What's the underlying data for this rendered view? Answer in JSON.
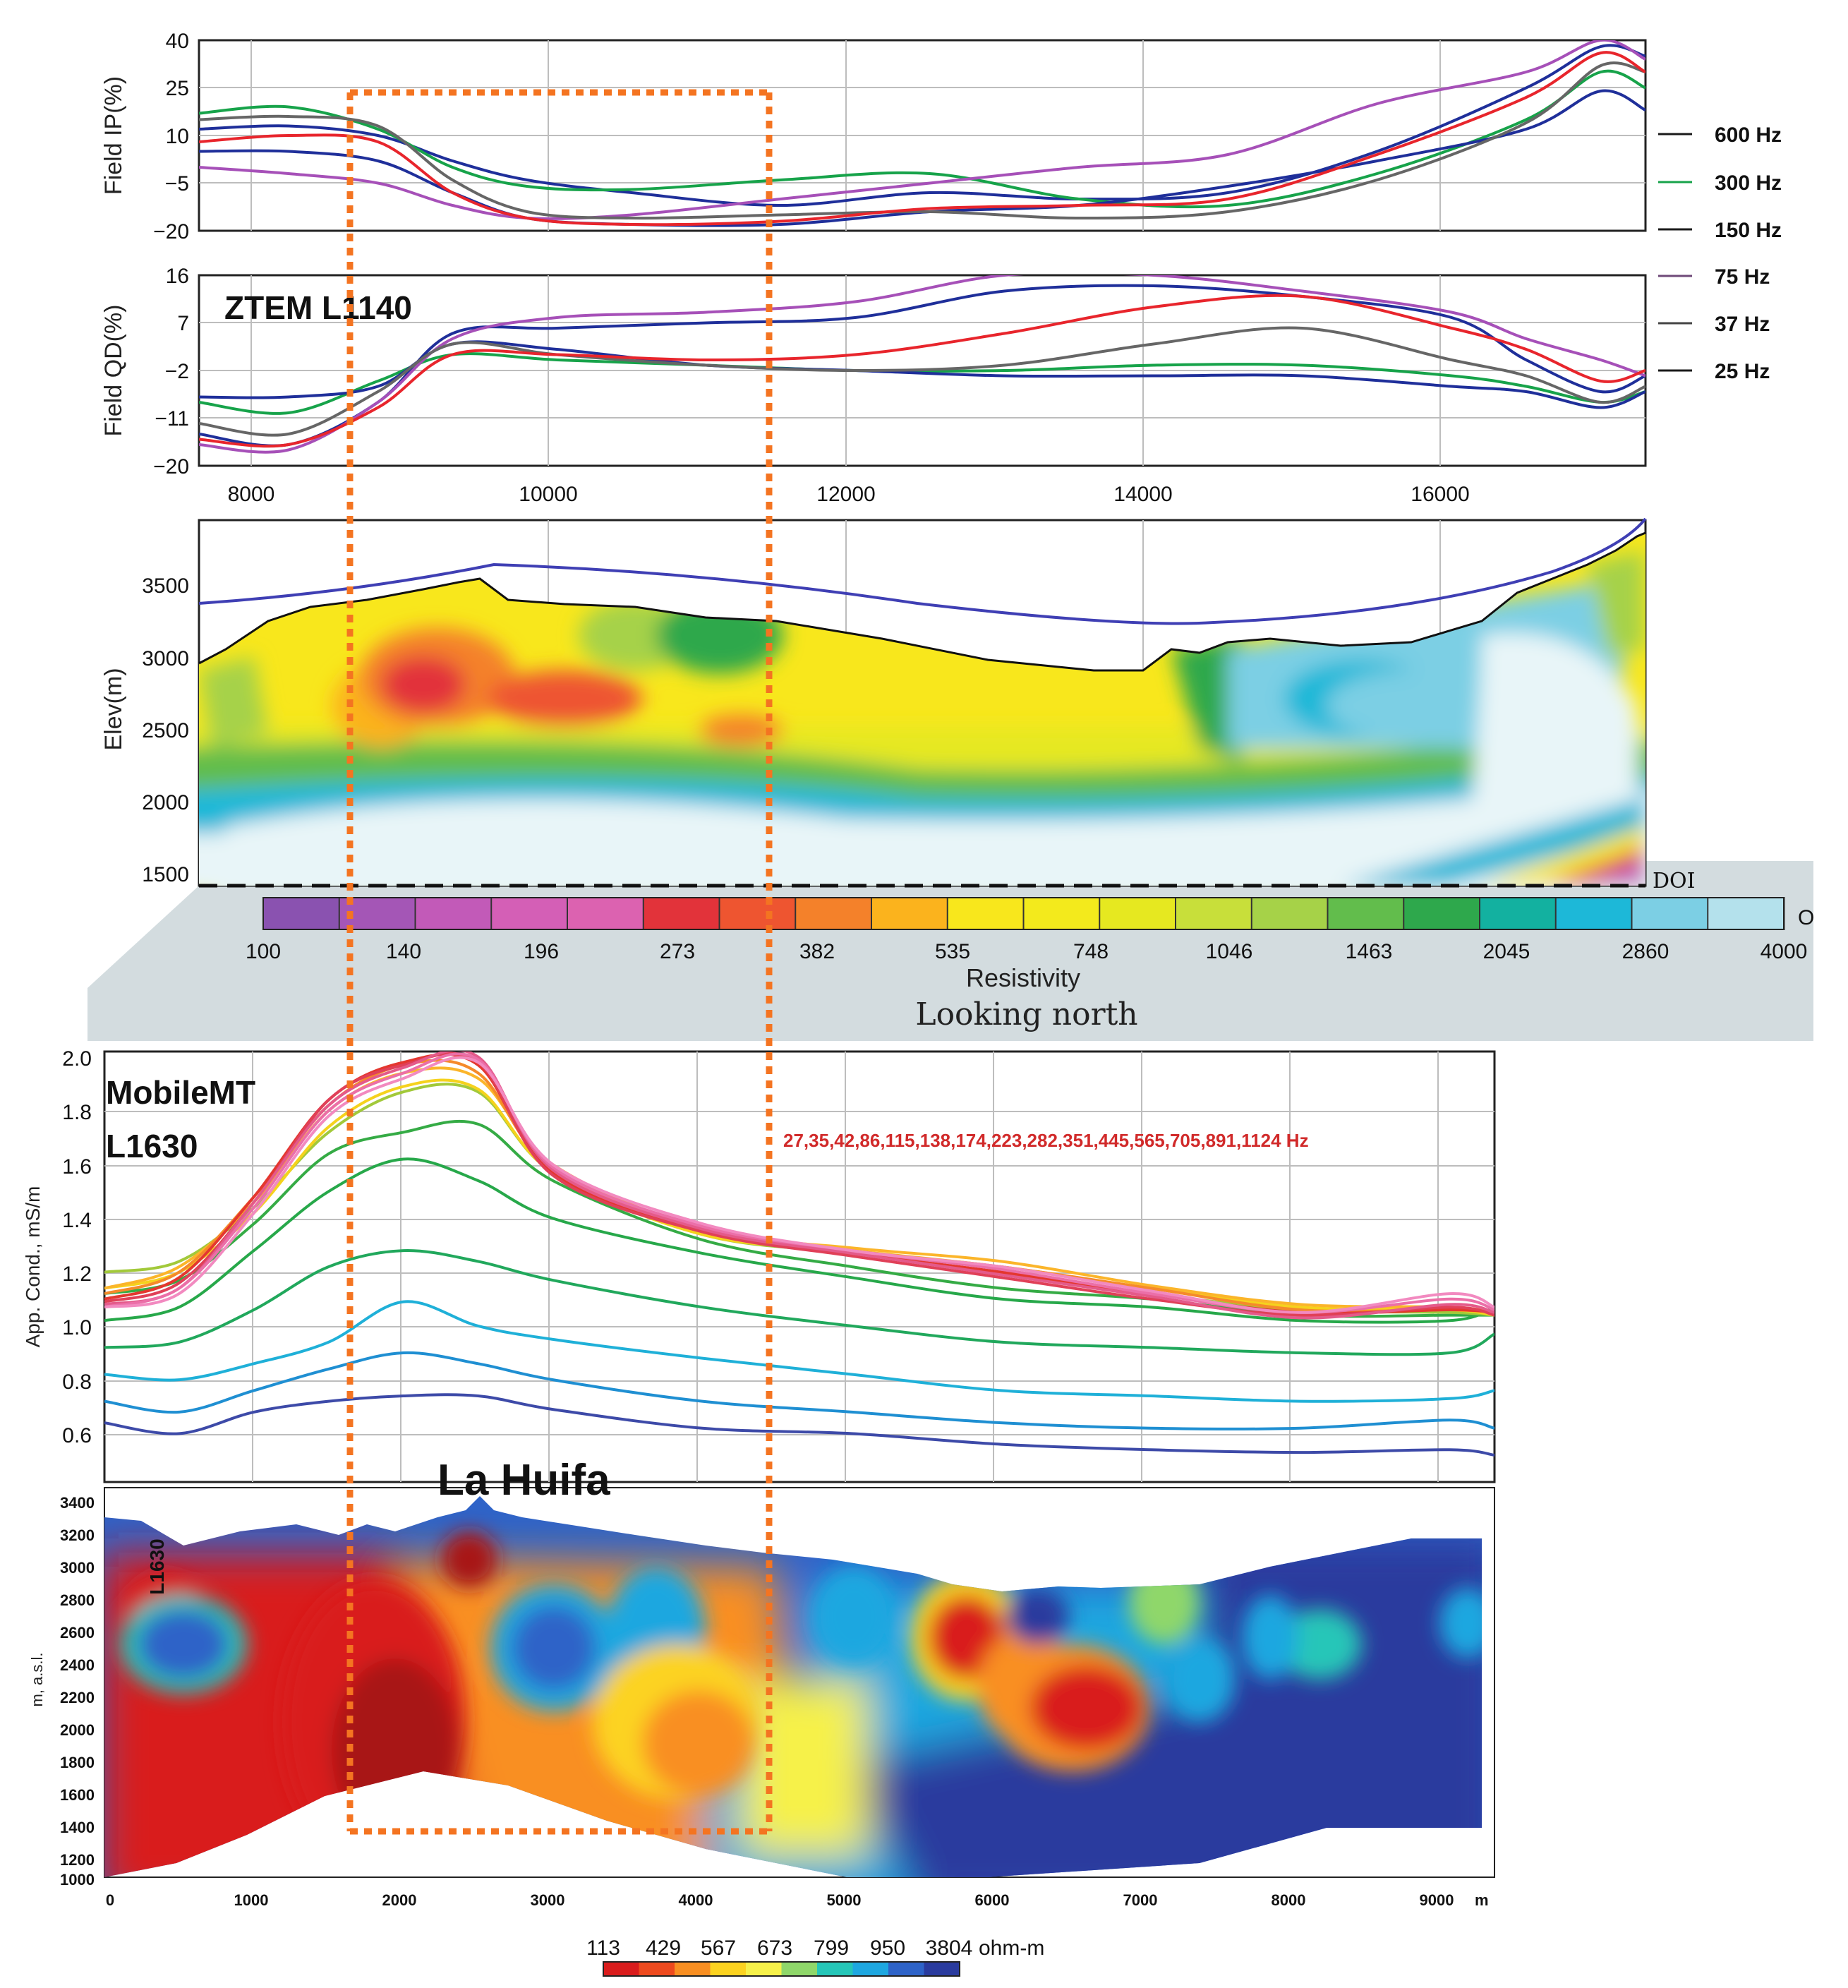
{
  "chart_data": [
    {
      "type": "line",
      "panel": "ztem-ip",
      "ylabel": "Field IP(%)",
      "y_ticks": [
        "40",
        "25",
        "10",
        "−5",
        "−20"
      ],
      "ylim": [
        -20,
        40
      ],
      "xlim": [
        7600,
        17300
      ],
      "series": [
        {
          "name": "600 Hz",
          "color": "#1f2f9a",
          "x": [
            7600,
            8200,
            8800,
            9300,
            9800,
            10500,
            11500,
            12500,
            13500,
            14500,
            15500,
            16500,
            17000,
            17300
          ],
          "y": [
            12,
            13,
            10,
            2,
            -4,
            -8,
            -12,
            -8,
            -10,
            -8,
            5,
            25,
            38,
            35
          ]
        },
        {
          "name": "300 Hz",
          "color": "#17a34a",
          "x": [
            7600,
            8200,
            8800,
            9300,
            9800,
            10500,
            11500,
            12500,
            13500,
            14500,
            15500,
            16500,
            17000,
            17300
          ],
          "y": [
            17,
            19,
            12,
            0,
            -6,
            -7,
            -4,
            -2,
            -10,
            -12,
            -2,
            15,
            30,
            25
          ]
        },
        {
          "name": "150 Hz",
          "color": "#1f2f9a",
          "x": [
            7600,
            8200,
            8800,
            9300,
            9800,
            10500,
            11500,
            12500,
            13500,
            14500,
            15500,
            16500,
            17000,
            17300
          ],
          "y": [
            5,
            5,
            2,
            -8,
            -16,
            -18,
            -18,
            -14,
            -12,
            -6,
            2,
            12,
            24,
            18
          ]
        },
        {
          "name": "75 Hz",
          "color": "#a650b8",
          "x": [
            7600,
            8200,
            8800,
            9300,
            9800,
            10500,
            11500,
            12500,
            13500,
            14500,
            15500,
            16500,
            17000,
            17300
          ],
          "y": [
            0,
            -2,
            -5,
            -12,
            -16,
            -15,
            -10,
            -5,
            0,
            4,
            20,
            30,
            40,
            34
          ]
        },
        {
          "name": "37 Hz",
          "color": "#666666",
          "x": [
            7600,
            8200,
            8800,
            9300,
            9800,
            10500,
            11500,
            12500,
            13500,
            14500,
            15500,
            16500,
            17000,
            17300
          ],
          "y": [
            15,
            16,
            13,
            -4,
            -14,
            -16,
            -15,
            -14,
            -16,
            -14,
            -4,
            14,
            32,
            30
          ]
        },
        {
          "name": "25 Hz",
          "color": "#e8252c",
          "x": [
            7600,
            8200,
            8800,
            9300,
            9800,
            10500,
            11500,
            12500,
            13500,
            14500,
            15500,
            16500,
            17000,
            17300
          ],
          "y": [
            8,
            10,
            8,
            -8,
            -16,
            -18,
            -17,
            -13,
            -12,
            -10,
            4,
            22,
            36,
            30
          ]
        }
      ],
      "legend": [
        "600 Hz",
        "300 Hz",
        "150 Hz",
        "75 Hz",
        "37 Hz",
        "25 Hz"
      ]
    },
    {
      "type": "line",
      "panel": "ztem-qd",
      "title": "ZTEM L1140",
      "ylabel": "Field QD(%)",
      "y_ticks": [
        "16",
        "7",
        "−2",
        "−11",
        "−20"
      ],
      "ylim": [
        -20,
        16
      ],
      "xlim": [
        7600,
        17300
      ],
      "x_ticks": [
        "8000",
        "10000",
        "12000",
        "14000",
        "16000"
      ],
      "series": [
        {
          "name": "600 Hz",
          "color": "#1f2f9a",
          "x": [
            7600,
            8200,
            8800,
            9300,
            10000,
            11000,
            12000,
            13000,
            14000,
            15000,
            16000,
            16500,
            17000,
            17300
          ],
          "y": [
            -14,
            -16,
            -8,
            5,
            6,
            7,
            8,
            13,
            14,
            12,
            8,
            0,
            -6,
            -3
          ]
        },
        {
          "name": "300 Hz",
          "color": "#17a34a",
          "x": [
            7600,
            8200,
            8800,
            9300,
            10000,
            11000,
            12000,
            13000,
            14000,
            15000,
            16000,
            16500,
            17000,
            17300
          ],
          "y": [
            -8,
            -10,
            -4,
            1,
            0,
            -1,
            -2,
            -2,
            -1,
            -1,
            -3,
            -5,
            -8,
            -6
          ]
        },
        {
          "name": "150 Hz",
          "color": "#1f2f9a",
          "x": [
            7600,
            8200,
            8800,
            9300,
            10000,
            11000,
            12000,
            13000,
            14000,
            15000,
            16000,
            16500,
            17000,
            17300
          ],
          "y": [
            -7,
            -7,
            -5,
            3,
            2,
            -1,
            -2,
            -3,
            -3,
            -3,
            -5,
            -6,
            -9,
            -6
          ]
        },
        {
          "name": "75 Hz",
          "color": "#a650b8",
          "x": [
            7600,
            8200,
            8800,
            9300,
            10000,
            11000,
            12000,
            13000,
            14000,
            15000,
            16000,
            16500,
            17000,
            17300
          ],
          "y": [
            -16,
            -17,
            -8,
            4,
            8,
            9,
            11,
            16,
            16,
            13,
            9,
            4,
            0,
            -3
          ]
        },
        {
          "name": "37 Hz",
          "color": "#666666",
          "x": [
            7600,
            8200,
            8800,
            9300,
            10000,
            11000,
            12000,
            13000,
            14000,
            15000,
            16000,
            16500,
            17000,
            17300
          ],
          "y": [
            -12,
            -14,
            -6,
            3,
            1,
            -1,
            -2,
            -1,
            3,
            6,
            0,
            -3,
            -8,
            -5
          ]
        },
        {
          "name": "25 Hz",
          "color": "#e8252c",
          "x": [
            7600,
            8200,
            8800,
            9300,
            10000,
            11000,
            12000,
            13000,
            14000,
            15000,
            16000,
            16500,
            17000,
            17300
          ],
          "y": [
            -15,
            -16,
            -9,
            1,
            1,
            0,
            1,
            5,
            10,
            12,
            6,
            2,
            -4,
            -2
          ]
        }
      ]
    },
    {
      "type": "heatmap",
      "panel": "ztem-resistivity-section",
      "ylabel": "Elev(m)",
      "y_ticks": [
        "3500",
        "3000",
        "2500",
        "2000",
        "1500"
      ],
      "ylim": [
        1400,
        3900
      ],
      "doi_label": "DOI",
      "colorbar_label": "Resistivity",
      "colorbar_ticks": [
        "100",
        "140",
        "196",
        "273",
        "382",
        "535",
        "748",
        "1046",
        "1463",
        "2045",
        "2860",
        "4000"
      ],
      "colorbar_end_label": "O",
      "colors": [
        "#8a52b0",
        "#a456b6",
        "#c25ab8",
        "#d45fb6",
        "#dc62b0",
        "#e2333a",
        "#ee5530",
        "#f4812a",
        "#fbb31d",
        "#f8e71c",
        "#f3ea1c",
        "#e6e820",
        "#c8df3a",
        "#a6d248",
        "#62bd4c",
        "#2ea84c",
        "#13b1a0",
        "#1db8d8",
        "#7ccfe4",
        "#b4e1ec"
      ],
      "caption": "Looking north"
    },
    {
      "type": "line",
      "panel": "mobilemt-conductivity",
      "title_lines": [
        "MobileMT",
        "L1630"
      ],
      "ylabel": "App. Cond., mS/m",
      "y_ticks": [
        "2.0",
        "1.8",
        "1.6",
        "1.4",
        "1.2",
        "1.0",
        "0.8",
        "0.6"
      ],
      "ylim": [
        0.4,
        2.0
      ],
      "xlim": [
        0,
        9300
      ],
      "frequencies_label": "27,35,42,86,115,138,174,223,282,351,445,565,705,891,1124 Hz",
      "x": [
        0,
        500,
        1000,
        1500,
        2000,
        2500,
        3000,
        4000,
        5000,
        6000,
        7000,
        8000,
        9000,
        9300
      ],
      "series": [
        {
          "name": "27 Hz",
          "color": "#3d4aa8",
          "values": [
            0.62,
            0.58,
            0.66,
            0.7,
            0.72,
            0.72,
            0.67,
            0.6,
            0.58,
            0.54,
            0.52,
            0.51,
            0.52,
            0.5
          ]
        },
        {
          "name": "35 Hz",
          "color": "#1f8fd2",
          "values": [
            0.7,
            0.66,
            0.74,
            0.82,
            0.88,
            0.84,
            0.78,
            0.7,
            0.66,
            0.62,
            0.6,
            0.6,
            0.63,
            0.6
          ]
        },
        {
          "name": "42 Hz",
          "color": "#1fb0d8",
          "values": [
            0.8,
            0.78,
            0.84,
            0.92,
            1.07,
            0.98,
            0.93,
            0.86,
            0.8,
            0.74,
            0.72,
            0.7,
            0.71,
            0.74
          ]
        },
        {
          "name": "86 Hz",
          "color": "#21a85c",
          "values": [
            0.9,
            0.92,
            1.04,
            1.2,
            1.26,
            1.22,
            1.15,
            1.05,
            0.98,
            0.92,
            0.9,
            0.88,
            0.88,
            0.95
          ]
        },
        {
          "name": "115 Hz",
          "color": "#27a84a",
          "values": [
            1.0,
            1.05,
            1.26,
            1.48,
            1.6,
            1.52,
            1.38,
            1.25,
            1.16,
            1.08,
            1.05,
            1.0,
            1.0,
            1.05
          ]
        },
        {
          "name": "138 Hz",
          "color": "#35ab45",
          "values": [
            1.1,
            1.15,
            1.36,
            1.62,
            1.7,
            1.73,
            1.52,
            1.3,
            1.2,
            1.12,
            1.08,
            1.02,
            1.02,
            1.02
          ]
        },
        {
          "name": "174 Hz",
          "color": "#a2c93a",
          "values": [
            1.18,
            1.22,
            1.42,
            1.7,
            1.85,
            1.85,
            1.55,
            1.32,
            1.25,
            1.18,
            1.1,
            1.04,
            1.03,
            1.02
          ]
        },
        {
          "name": "223 Hz",
          "color": "#f5d21d",
          "values": [
            1.12,
            1.18,
            1.4,
            1.72,
            1.87,
            1.86,
            1.55,
            1.32,
            1.26,
            1.2,
            1.12,
            1.05,
            1.04,
            1.02
          ]
        },
        {
          "name": "282 Hz",
          "color": "#fbb52a",
          "values": [
            1.12,
            1.2,
            1.44,
            1.78,
            1.92,
            1.9,
            1.58,
            1.34,
            1.27,
            1.22,
            1.13,
            1.06,
            1.05,
            1.03
          ]
        },
        {
          "name": "351 Hz",
          "color": "#f58a2a",
          "values": [
            1.1,
            1.18,
            1.46,
            1.8,
            1.95,
            1.92,
            1.56,
            1.34,
            1.26,
            1.2,
            1.12,
            1.04,
            1.04,
            1.03
          ]
        },
        {
          "name": "445 Hz",
          "color": "#e4372f",
          "values": [
            1.08,
            1.16,
            1.46,
            1.82,
            1.96,
            1.95,
            1.55,
            1.33,
            1.25,
            1.18,
            1.1,
            1.03,
            1.04,
            1.03
          ]
        },
        {
          "name": "565 Hz",
          "color": "#e04058",
          "values": [
            1.07,
            1.14,
            1.44,
            1.82,
            1.95,
            1.96,
            1.54,
            1.33,
            1.24,
            1.16,
            1.08,
            1.02,
            1.05,
            1.02
          ]
        },
        {
          "name": "705 Hz",
          "color": "#e45a8a",
          "values": [
            1.06,
            1.12,
            1.44,
            1.8,
            1.94,
            1.98,
            1.56,
            1.34,
            1.25,
            1.17,
            1.09,
            1.01,
            1.06,
            1.03
          ]
        },
        {
          "name": "891 Hz",
          "color": "#eb6fa8",
          "values": [
            1.05,
            1.12,
            1.42,
            1.78,
            1.92,
            1.97,
            1.57,
            1.35,
            1.26,
            1.19,
            1.1,
            1.03,
            1.08,
            1.04
          ]
        },
        {
          "name": "1124 Hz",
          "color": "#f28ac0",
          "values": [
            1.05,
            1.1,
            1.4,
            1.76,
            1.9,
            1.96,
            1.58,
            1.36,
            1.26,
            1.2,
            1.11,
            1.03,
            1.1,
            1.05
          ]
        }
      ]
    },
    {
      "type": "heatmap",
      "panel": "mobilemt-resistivity-section",
      "section_label": "L1630",
      "ylabel": "m, a.s.l.",
      "y_ticks": [
        "3400",
        "3200",
        "3000",
        "2800",
        "2600",
        "2400",
        "2200",
        "2000",
        "1800",
        "1600",
        "1400",
        "1200",
        "1000"
      ],
      "ylim": [
        1000,
        3400
      ],
      "x_ticks": [
        "0",
        "1000",
        "2000",
        "3000",
        "4000",
        "5000",
        "6000",
        "7000",
        "8000",
        "9000"
      ],
      "x_unit": "m",
      "xlim": [
        0,
        9300
      ],
      "colorbar_ticks": [
        "113",
        "429",
        "567",
        "673",
        "799",
        "950",
        "3804"
      ],
      "colorbar_unit": "ohm-m",
      "colors": [
        "#d91c1c",
        "#ee4a1e",
        "#f98f22",
        "#fcd320",
        "#f6f14a",
        "#8fd76a",
        "#25c6b8",
        "#1ea7e0",
        "#2e63c8",
        "#2a3b9e"
      ]
    }
  ],
  "annotation": {
    "target_label": "La Huifa",
    "box_color": "#f47421"
  }
}
